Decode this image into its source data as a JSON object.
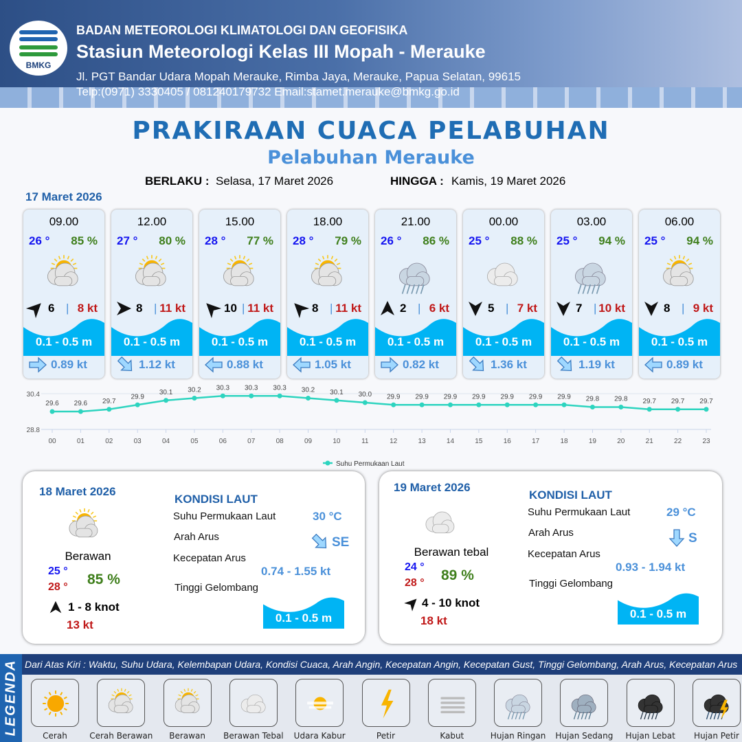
{
  "header": {
    "agency": "BADAN METEOROLOGI KLIMATOLOGI DAN GEOFISIKA",
    "station": "Stasiun Meteorologi Kelas III Mopah - Merauke",
    "address": "Jl. PGT Bandar Udara Mopah Merauke, Rimba Jaya, Merauke, Papua Selatan, 99615",
    "contact": "Telp:(0971) 3330405 / 081240179732  Email:stamet.merauke@bmkg.go.id",
    "logo_text": "BMKG"
  },
  "title": "PRAKIRAAN CUACA PELABUHAN",
  "subtitle": "Pelabuhan Merauke",
  "validity": {
    "from_label": "BERLAKU :",
    "from": "Selasa, 17 Maret 2026",
    "to_label": "HINGGA :",
    "to": "Kamis, 19 Maret 2026"
  },
  "day1": {
    "date": "17 Maret 2026",
    "hours": [
      {
        "time": "09.00",
        "temp": "26 °",
        "rh": "85 %",
        "icon": "cerah-berawan",
        "wind_dir_deg": 45,
        "wind": "6",
        "gust": "8 kt",
        "wave": "0.1 - 0.5 m",
        "cur_dir_deg": 90,
        "cur": "0.89 kt"
      },
      {
        "time": "12.00",
        "temp": "27 °",
        "rh": "80 %",
        "icon": "cerah-berawan",
        "wind_dir_deg": 90,
        "wind": "8",
        "gust": "11 kt",
        "wave": "0.1 - 0.5 m",
        "cur_dir_deg": 135,
        "cur": "1.12 kt"
      },
      {
        "time": "15.00",
        "temp": "28 °",
        "rh": "77 %",
        "icon": "cerah-berawan",
        "wind_dir_deg": -45,
        "wind": "10",
        "gust": "11 kt",
        "wave": "0.1 - 0.5 m",
        "cur_dir_deg": 270,
        "cur": "0.88 kt"
      },
      {
        "time": "18.00",
        "temp": "28 °",
        "rh": "79 %",
        "icon": "cerah-berawan",
        "wind_dir_deg": -45,
        "wind": "8",
        "gust": "11 kt",
        "wave": "0.1 - 0.5 m",
        "cur_dir_deg": 270,
        "cur": "1.05 kt"
      },
      {
        "time": "21.00",
        "temp": "26 °",
        "rh": "86 %",
        "icon": "hujan-ringan",
        "wind_dir_deg": 0,
        "wind": "2",
        "gust": "6 kt",
        "wave": "0.1 - 0.5 m",
        "cur_dir_deg": 90,
        "cur": "0.82 kt"
      },
      {
        "time": "00.00",
        "temp": "25 °",
        "rh": "88 %",
        "icon": "berawan-tebal",
        "wind_dir_deg": 180,
        "wind": "5",
        "gust": "7 kt",
        "wave": "0.1 - 0.5 m",
        "cur_dir_deg": 135,
        "cur": "1.36 kt"
      },
      {
        "time": "03.00",
        "temp": "25 °",
        "rh": "94 %",
        "icon": "hujan-ringan",
        "wind_dir_deg": 180,
        "wind": "7",
        "gust": "10 kt",
        "wave": "0.1 - 0.5 m",
        "cur_dir_deg": 135,
        "cur": "1.19 kt"
      },
      {
        "time": "06.00",
        "temp": "25 °",
        "rh": "94 %",
        "icon": "cerah-berawan",
        "wind_dir_deg": 180,
        "wind": "8",
        "gust": "9 kt",
        "wave": "0.1 - 0.5 m",
        "cur_dir_deg": 270,
        "cur": "0.89 kt"
      }
    ]
  },
  "chart_data": {
    "type": "line",
    "x": [
      "00",
      "01",
      "02",
      "03",
      "04",
      "05",
      "06",
      "07",
      "08",
      "09",
      "10",
      "11",
      "12",
      "13",
      "14",
      "15",
      "16",
      "17",
      "18",
      "19",
      "20",
      "21",
      "22",
      "23"
    ],
    "series": [
      {
        "name": "Suhu Permukaan Laut",
        "values": [
          29.6,
          29.6,
          29.7,
          29.9,
          30.1,
          30.2,
          30.3,
          30.3,
          30.3,
          30.2,
          30.1,
          30.0,
          29.9,
          29.9,
          29.9,
          29.9,
          29.9,
          29.9,
          29.9,
          29.8,
          29.8,
          29.7,
          29.7,
          29.7
        ],
        "color": "#2dd4bf"
      }
    ],
    "yticks": [
      "30.4",
      "28.8"
    ],
    "ylim": [
      28.8,
      30.4
    ],
    "legend": "bottom",
    "grid": true
  },
  "days": [
    {
      "date": "18 Maret 2026",
      "icon": "berawan",
      "cond": "Berawan",
      "tmin": "25 °",
      "tmax": "28 °",
      "rh": "85 %",
      "wind_dir_deg": 0,
      "wind": "1  - 8 knot",
      "gust": "13 kt",
      "sea": {
        "title": "KONDISI LAUT",
        "sst_label": "Suhu Permukaan Laut",
        "sst": "30 °C",
        "dir_label": "Arah Arus",
        "dir": "SE",
        "cur_dir_deg": 135,
        "spd_label": "Kecepatan Arus",
        "spd": "0.74 - 1.55 kt",
        "wave_label": "Tinggi Gelombang",
        "wave": "0.1 - 0.5 m"
      }
    },
    {
      "date": "19 Maret 2026",
      "icon": "berawan-tebal",
      "cond": "Berawan tebal",
      "tmin": "24 °",
      "tmax": "28 °",
      "rh": "89 %",
      "wind_dir_deg": 45,
      "wind": "4  - 10 knot",
      "gust": "18 kt",
      "sea": {
        "title": "KONDISI LAUT",
        "sst_label": "Suhu Permukaan Laut",
        "sst": "29 °C",
        "dir_label": "Arah Arus",
        "dir": "S",
        "cur_dir_deg": 180,
        "spd_label": "Kecepatan Arus",
        "spd": "0.93 - 1.94 kt",
        "wave_label": "Tinggi Gelombang",
        "wave": "0.1 - 0.5 m"
      }
    }
  ],
  "legend": {
    "side": "LEGENDA",
    "caption": "Dari Atas Kiri : Waktu, Suhu Udara, Kelembapan Udara, Kondisi Cuaca, Arah Angin, Kecepatan Angin, Kecepatan Gust, Tinggi Gelombang, Arah Arus, Kecepatan Arus",
    "items": [
      {
        "label": "Cerah",
        "icon": "cerah"
      },
      {
        "label": "Cerah Berawan",
        "icon": "cerah-berawan"
      },
      {
        "label": "Berawan",
        "icon": "berawan"
      },
      {
        "label": "Berawan Tebal",
        "icon": "berawan-tebal"
      },
      {
        "label": "Udara Kabur",
        "icon": "udara-kabur"
      },
      {
        "label": "Petir",
        "icon": "petir"
      },
      {
        "label": "Kabut",
        "icon": "kabut"
      },
      {
        "label": "Hujan Ringan",
        "icon": "hujan-ringan"
      },
      {
        "label": "Hujan Sedang",
        "icon": "hujan-sedang"
      },
      {
        "label": "Hujan Lebat",
        "icon": "hujan-lebat"
      },
      {
        "label": "Hujan Petir",
        "icon": "hujan-petir"
      }
    ]
  }
}
